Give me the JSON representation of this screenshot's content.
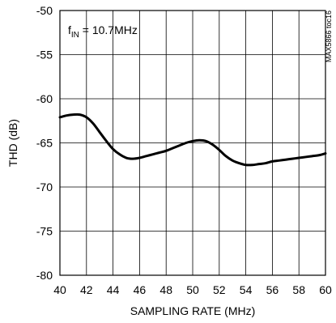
{
  "chart_data": {
    "type": "line",
    "title": "",
    "xlabel": "SAMPLING RATE (MHz)",
    "ylabel": "THD (dB)",
    "xlim": [
      40,
      60
    ],
    "ylim": [
      -80,
      -50
    ],
    "grid": true,
    "x_ticks": [
      "40",
      "42",
      "44",
      "46",
      "48",
      "50",
      "52",
      "54",
      "56",
      "58",
      "60"
    ],
    "y_ticks": [
      "-50",
      "-55",
      "-60",
      "-65",
      "-70",
      "-75",
      "-80"
    ],
    "annotation": {
      "main": "f",
      "sub": "IN",
      "rest": " = 10.7MHz"
    },
    "side_note": "MAX5866 toc16",
    "series": [
      {
        "x": [
          40,
          40.5,
          41,
          41.5,
          42,
          42.5,
          43,
          43.5,
          44,
          44.5,
          45,
          45.5,
          46,
          46.5,
          47,
          47.5,
          48,
          48.5,
          49,
          49.5,
          50,
          50.5,
          51,
          51.5,
          52,
          52.5,
          53,
          53.5,
          54,
          54.5,
          55,
          55.5,
          56,
          56.5,
          57,
          57.5,
          58,
          58.5,
          59,
          59.5,
          60
        ],
        "y": [
          -62.1,
          -61.9,
          -61.8,
          -61.8,
          -62.1,
          -62.8,
          -63.8,
          -64.8,
          -65.7,
          -66.3,
          -66.7,
          -66.8,
          -66.7,
          -66.5,
          -66.3,
          -66.1,
          -65.9,
          -65.6,
          -65.3,
          -65.0,
          -64.8,
          -64.7,
          -64.8,
          -65.2,
          -65.8,
          -66.5,
          -67.0,
          -67.3,
          -67.5,
          -67.5,
          -67.4,
          -67.3,
          -67.1,
          -67.0,
          -66.9,
          -66.8,
          -66.7,
          -66.6,
          -66.5,
          -66.4,
          -66.2
        ],
        "color": "#000000"
      }
    ]
  }
}
